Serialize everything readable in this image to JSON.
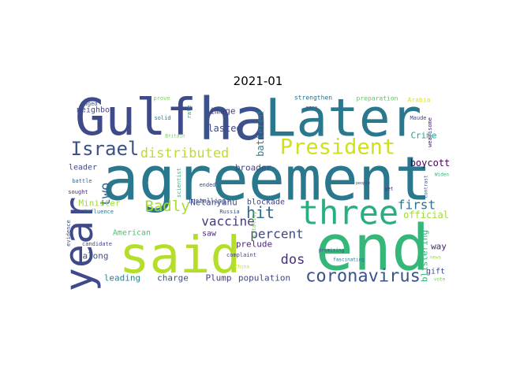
{
  "chart_data": {
    "type": "wordcloud",
    "title": "2021-01",
    "words": [
      {
        "text": "agreement",
        "weight": 77,
        "color": "#2a788e"
      },
      {
        "text": "Later",
        "weight": 66,
        "color": "#2a788e"
      },
      {
        "text": "ha",
        "weight": 74,
        "color": "#3b528b"
      },
      {
        "text": "Gulf",
        "weight": 64,
        "color": "#3e4a89"
      },
      {
        "text": "said",
        "weight": 64,
        "color": "#b5de2b"
      },
      {
        "text": "end",
        "weight": 80,
        "color": "#35b779"
      },
      {
        "text": "year",
        "weight": 50,
        "color": "#3e4a89"
      },
      {
        "text": "three",
        "weight": 42,
        "color": "#29af7f"
      },
      {
        "text": "President",
        "weight": 27,
        "color": "#d0e11c"
      },
      {
        "text": "Israel",
        "weight": 24,
        "color": "#3b528b"
      },
      {
        "text": "distributed",
        "weight": 17,
        "color": "#bddf26"
      },
      {
        "text": "hit",
        "weight": 20,
        "color": "#31688e"
      },
      {
        "text": "Badly",
        "weight": 19,
        "color": "#a8db34"
      },
      {
        "text": "vaccine",
        "weight": 16,
        "color": "#443983"
      },
      {
        "text": "percent",
        "weight": 16,
        "color": "#3e4a89"
      },
      {
        "text": "dos",
        "weight": 17,
        "color": "#472d7b"
      },
      {
        "text": "coronavirus",
        "weight": 22,
        "color": "#3b528b"
      },
      {
        "text": "two",
        "weight": 17,
        "color": "#31688e"
      },
      {
        "text": "first",
        "weight": 16,
        "color": "#2c728e"
      },
      {
        "text": "official",
        "weight": 12,
        "color": "#a0da39"
      },
      {
        "text": "neighbor",
        "weight": 10,
        "color": "#414487"
      },
      {
        "text": "image",
        "weight": 11,
        "color": "#443a83"
      },
      {
        "text": "lasted",
        "weight": 12,
        "color": "#3e4989"
      },
      {
        "text": "battered",
        "weight": 12,
        "color": "#26828e"
      },
      {
        "text": "broader",
        "weight": 11,
        "color": "#414487"
      },
      {
        "text": "boycott",
        "weight": 12,
        "color": "#440154"
      },
      {
        "text": "Crime",
        "weight": 11,
        "color": "#1f9e89"
      },
      {
        "text": "way",
        "weight": 11,
        "color": "#482071"
      },
      {
        "text": "blistering",
        "weight": 11,
        "color": "#31b57b"
      },
      {
        "text": "gift",
        "weight": 10,
        "color": "#3e4989"
      },
      {
        "text": "leader",
        "weight": 10,
        "color": "#3e4989"
      },
      {
        "text": "Minister",
        "weight": 11,
        "color": "#9fda3a"
      },
      {
        "text": "Netanyahu",
        "weight": 11,
        "color": "#3e4a89"
      },
      {
        "text": "blockade",
        "weight": 10,
        "color": "#404688"
      },
      {
        "text": "American",
        "weight": 10,
        "color": "#4ac16d"
      },
      {
        "text": "saw",
        "weight": 10,
        "color": "#472d7b"
      },
      {
        "text": "prelude",
        "weight": 11,
        "color": "#482878"
      },
      {
        "text": "along",
        "weight": 11,
        "color": "#3b528b"
      },
      {
        "text": "leading",
        "weight": 11,
        "color": "#26828e"
      },
      {
        "text": "charge",
        "weight": 11,
        "color": "#3b528b"
      },
      {
        "text": "Plump",
        "weight": 11,
        "color": "#433e85"
      },
      {
        "text": "population",
        "weight": 11,
        "color": "#404588"
      },
      {
        "text": "preparation",
        "weight": 8,
        "color": "#5ec962"
      },
      {
        "text": "strengthen",
        "weight": 8,
        "color": "#2c728e"
      },
      {
        "text": "Arabia",
        "weight": 8,
        "color": "#dde318"
      },
      {
        "text": "prove",
        "weight": 7,
        "color": "#7ad151"
      },
      {
        "text": "waged",
        "weight": 7,
        "color": "#3b528b"
      },
      {
        "text": "solid",
        "weight": 7,
        "color": "#2c728e"
      },
      {
        "text": "rate",
        "weight": 7,
        "color": "#21918c"
      },
      {
        "text": "Britain",
        "weight": 6,
        "color": "#6ece58"
      },
      {
        "text": "scientist",
        "weight": 7,
        "color": "#35b779"
      },
      {
        "text": "ended",
        "weight": 7,
        "color": "#3e4989"
      },
      {
        "text": "sought",
        "weight": 7,
        "color": "#482878"
      },
      {
        "text": "battle",
        "weight": 7,
        "color": "#31688e"
      },
      {
        "text": "influence",
        "weight": 7,
        "color": "#2c728e"
      },
      {
        "text": "evidence",
        "weight": 7,
        "color": "#3b528b"
      },
      {
        "text": "candidate",
        "weight": 7,
        "color": "#3e4989"
      },
      {
        "text": "Russia",
        "weight": 7,
        "color": "#3b528b"
      },
      {
        "text": "installing",
        "weight": 8,
        "color": "#3e4989"
      },
      {
        "text": "vitality",
        "weight": 7,
        "color": "#7ad151"
      },
      {
        "text": "complaint",
        "weight": 7,
        "color": "#414487"
      },
      {
        "text": "China",
        "weight": 6,
        "color": "#bddf26"
      },
      {
        "text": "promising",
        "weight": 6,
        "color": "#3b528b"
      },
      {
        "text": "fascinating",
        "weight": 6,
        "color": "#2c728e"
      },
      {
        "text": "news",
        "weight": 6,
        "color": "#a0da39"
      },
      {
        "text": "vote",
        "weight": 6,
        "color": "#6ece58"
      },
      {
        "text": "contrast",
        "weight": 6,
        "color": "#3b528b"
      },
      {
        "text": "yet",
        "weight": 6,
        "color": "#482878"
      },
      {
        "text": "people",
        "weight": 5,
        "color": "#3e4989"
      },
      {
        "text": "Widen",
        "weight": 6,
        "color": "#35b779"
      },
      {
        "text": "wearisome",
        "weight": 7,
        "color": "#482878"
      },
      {
        "text": "Maude",
        "weight": 7,
        "color": "#3e4989"
      },
      {
        "text": "pace",
        "weight": 6,
        "color": "#3b528b"
      }
    ]
  }
}
